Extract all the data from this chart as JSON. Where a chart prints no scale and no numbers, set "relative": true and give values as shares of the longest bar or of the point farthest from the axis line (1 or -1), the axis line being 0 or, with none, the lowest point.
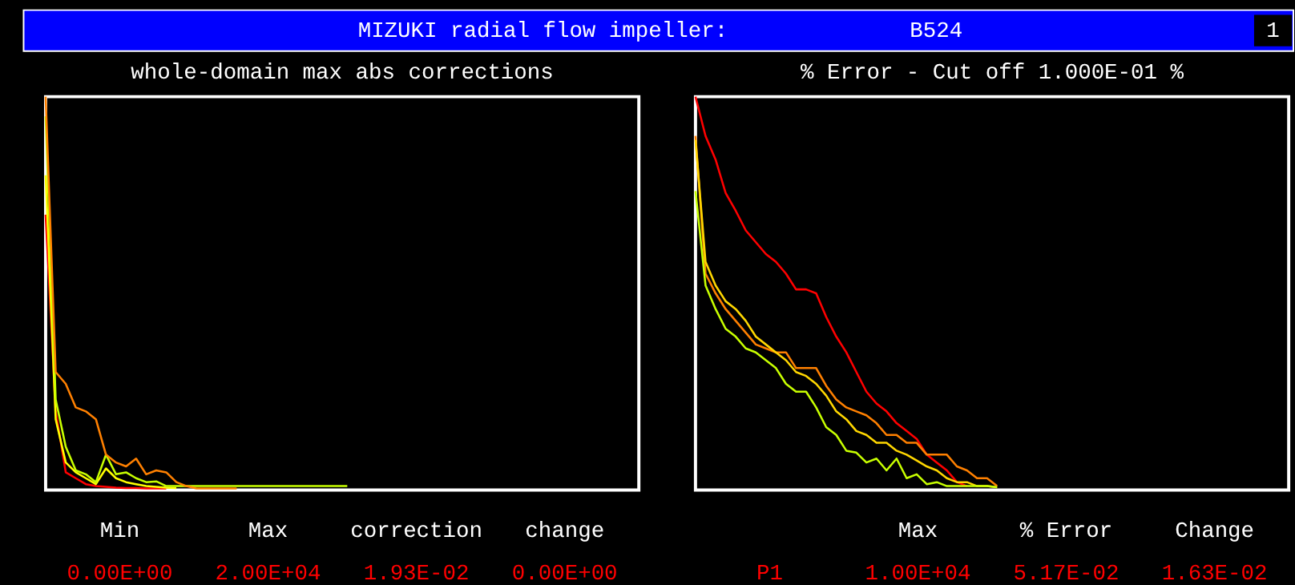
{
  "chart_data": [
    {
      "type": "other",
      "title": "MIZUKI radial flow impeller:",
      "annotations": [
        "B524",
        "1"
      ]
    },
    {
      "type": "line",
      "title": "whole-domain max abs corrections",
      "relative": true,
      "categories": [
        null,
        null,
        null,
        null,
        null,
        null,
        null,
        null,
        null,
        null,
        null,
        null,
        null,
        null,
        null,
        null,
        null,
        null,
        null,
        null,
        null,
        null,
        null,
        null,
        null,
        null,
        null,
        null,
        null,
        null,
        null,
        null,
        null,
        null,
        null,
        null,
        null,
        null,
        null,
        null,
        null,
        null,
        null,
        null,
        null,
        null,
        null,
        null,
        null,
        null,
        null,
        null,
        null,
        null,
        null,
        null,
        null,
        null,
        null,
        null
      ],
      "series": [
        {
          "color": "#ff0000",
          "values": [
            0.7,
            0.2,
            0.045,
            0.03,
            0.015,
            0.01,
            0.008,
            0.006,
            0.005,
            0.005,
            0.004,
            0.004,
            0.004,
            null,
            null,
            null,
            null,
            null,
            null,
            null,
            null,
            null,
            null,
            null,
            null,
            null,
            null,
            null,
            null,
            null,
            null,
            null,
            null,
            null,
            null,
            null,
            null,
            null,
            null,
            null,
            null,
            null,
            null,
            null,
            null,
            null,
            null,
            null,
            null,
            null,
            null,
            null,
            null,
            null,
            null,
            null,
            null,
            null,
            null,
            null
          ]
        },
        {
          "color": "#ffff00",
          "values": [
            0.8,
            0.18,
            0.07,
            0.045,
            0.03,
            0.015,
            0.055,
            0.03,
            0.02,
            0.015,
            0.01,
            0.008,
            0.006,
            0.005,
            null,
            null,
            null,
            null,
            null,
            null,
            null,
            null,
            null,
            null,
            null,
            null,
            null,
            null,
            null,
            null,
            null,
            null,
            null,
            null,
            null,
            null,
            null,
            null,
            null,
            null,
            null,
            null,
            null,
            null,
            null,
            null,
            null,
            null,
            null,
            null,
            null,
            null,
            null,
            null,
            null,
            null,
            null,
            null,
            null,
            null
          ]
        },
        {
          "color": "#c8ff00",
          "values": [
            0.95,
            0.23,
            0.11,
            0.05,
            0.04,
            0.02,
            0.09,
            0.04,
            0.045,
            0.03,
            0.02,
            0.022,
            0.01,
            0.01,
            0.01,
            0.01,
            0.01,
            0.01,
            0.01,
            0.01,
            0.01,
            0.01,
            0.01,
            0.01,
            0.01,
            0.01,
            0.01,
            0.01,
            0.01,
            0.01,
            0.01,
            null,
            null,
            null,
            null,
            null,
            null,
            null,
            null,
            null,
            null,
            null,
            null,
            null,
            null,
            null,
            null,
            null,
            null,
            null,
            null,
            null,
            null,
            null,
            null,
            null,
            null,
            null,
            null,
            null
          ]
        },
        {
          "color": "#ff8000",
          "values": [
            1.0,
            0.3,
            0.27,
            0.21,
            0.2,
            0.18,
            0.09,
            0.07,
            0.06,
            0.08,
            0.04,
            0.05,
            0.045,
            0.02,
            0.01,
            0.004,
            0.004,
            0.004,
            0.004,
            0.004,
            null,
            null,
            null,
            null,
            null,
            null,
            null,
            null,
            null,
            null,
            null,
            null,
            null,
            null,
            null,
            null,
            null,
            null,
            null,
            null,
            null,
            null,
            null,
            null,
            null,
            null,
            null,
            null,
            null,
            null,
            null,
            null,
            null,
            null,
            null,
            null,
            null,
            null,
            null,
            null
          ]
        }
      ],
      "annotations": [
        "Min",
        "Max",
        "correction",
        "change",
        "0.00E+00",
        "2.00E+04",
        "1.93E-02",
        "0.00E+00"
      ]
    },
    {
      "type": "line",
      "title": "% Error - Cut off 1.000E-01 %",
      "relative": true,
      "categories": [
        null,
        null,
        null,
        null,
        null,
        null,
        null,
        null,
        null,
        null,
        null,
        null,
        null,
        null,
        null,
        null,
        null,
        null,
        null,
        null,
        null,
        null,
        null,
        null,
        null,
        null,
        null,
        null,
        null,
        null,
        null,
        null,
        null,
        null,
        null,
        null,
        null,
        null,
        null,
        null,
        null,
        null,
        null,
        null,
        null,
        null,
        null,
        null,
        null,
        null,
        null,
        null,
        null,
        null,
        null,
        null,
        null,
        null,
        null,
        null
      ],
      "series": [
        {
          "color": "#ff0000",
          "values": [
            1.0,
            0.9,
            0.84,
            0.755,
            0.71,
            0.66,
            0.63,
            0.6,
            0.58,
            0.55,
            0.51,
            0.51,
            0.5,
            0.44,
            0.39,
            0.35,
            0.3,
            0.25,
            0.22,
            0.2,
            0.17,
            0.15,
            0.13,
            0.09,
            0.07,
            0.05,
            0.02,
            0.01,
            null,
            null,
            null,
            null,
            null,
            null,
            null,
            null,
            null,
            null,
            null,
            null,
            null,
            null,
            null,
            null,
            null,
            null,
            null,
            null,
            null,
            null,
            null,
            null,
            null,
            null,
            null,
            null,
            null,
            null,
            null,
            null
          ]
        },
        {
          "color": "#ff8000",
          "values": [
            0.9,
            0.55,
            0.5,
            0.46,
            0.43,
            0.4,
            0.37,
            0.36,
            0.35,
            0.35,
            0.31,
            0.31,
            0.31,
            0.265,
            0.23,
            0.21,
            0.2,
            0.19,
            0.17,
            0.14,
            0.14,
            0.12,
            0.12,
            0.09,
            0.09,
            0.09,
            0.06,
            0.05,
            0.03,
            0.03,
            0.01,
            null,
            null,
            null,
            null,
            null,
            null,
            null,
            null,
            null,
            null,
            null,
            null,
            null,
            null,
            null,
            null,
            null,
            null,
            null,
            null,
            null,
            null,
            null,
            null,
            null,
            null,
            null,
            null,
            null
          ]
        },
        {
          "color": "#ffd700",
          "values": [
            0.89,
            0.58,
            0.52,
            0.48,
            0.46,
            0.43,
            0.39,
            0.37,
            0.35,
            0.33,
            0.3,
            0.29,
            0.27,
            0.24,
            0.2,
            0.18,
            0.15,
            0.14,
            0.12,
            0.12,
            0.1,
            0.09,
            0.075,
            0.06,
            0.05,
            0.03,
            0.02,
            0.02,
            0.01,
            0.01,
            0.007,
            null,
            null,
            null,
            null,
            null,
            null,
            null,
            null,
            null,
            null,
            null,
            null,
            null,
            null,
            null,
            null,
            null,
            null,
            null,
            null,
            null,
            null,
            null,
            null,
            null,
            null,
            null,
            null,
            null
          ]
        },
        {
          "color": "#c8ff00",
          "values": [
            0.76,
            0.52,
            0.46,
            0.41,
            0.39,
            0.36,
            0.35,
            0.33,
            0.31,
            0.27,
            0.25,
            0.25,
            0.21,
            0.16,
            0.14,
            0.1,
            0.095,
            0.07,
            0.08,
            0.05,
            0.08,
            0.03,
            0.04,
            0.015,
            0.02,
            0.01,
            0.01,
            0.01,
            0.01,
            0.01,
            0.007,
            null,
            null,
            null,
            null,
            null,
            null,
            null,
            null,
            null,
            null,
            null,
            null,
            null,
            null,
            null,
            null,
            null,
            null,
            null,
            null,
            null,
            null,
            null,
            null,
            null,
            null,
            null,
            null,
            null
          ]
        }
      ],
      "annotations": [
        "Max",
        "% Error",
        "Change",
        "P1",
        "1.00E+04",
        "5.17E-02",
        "1.63E-02"
      ]
    }
  ]
}
